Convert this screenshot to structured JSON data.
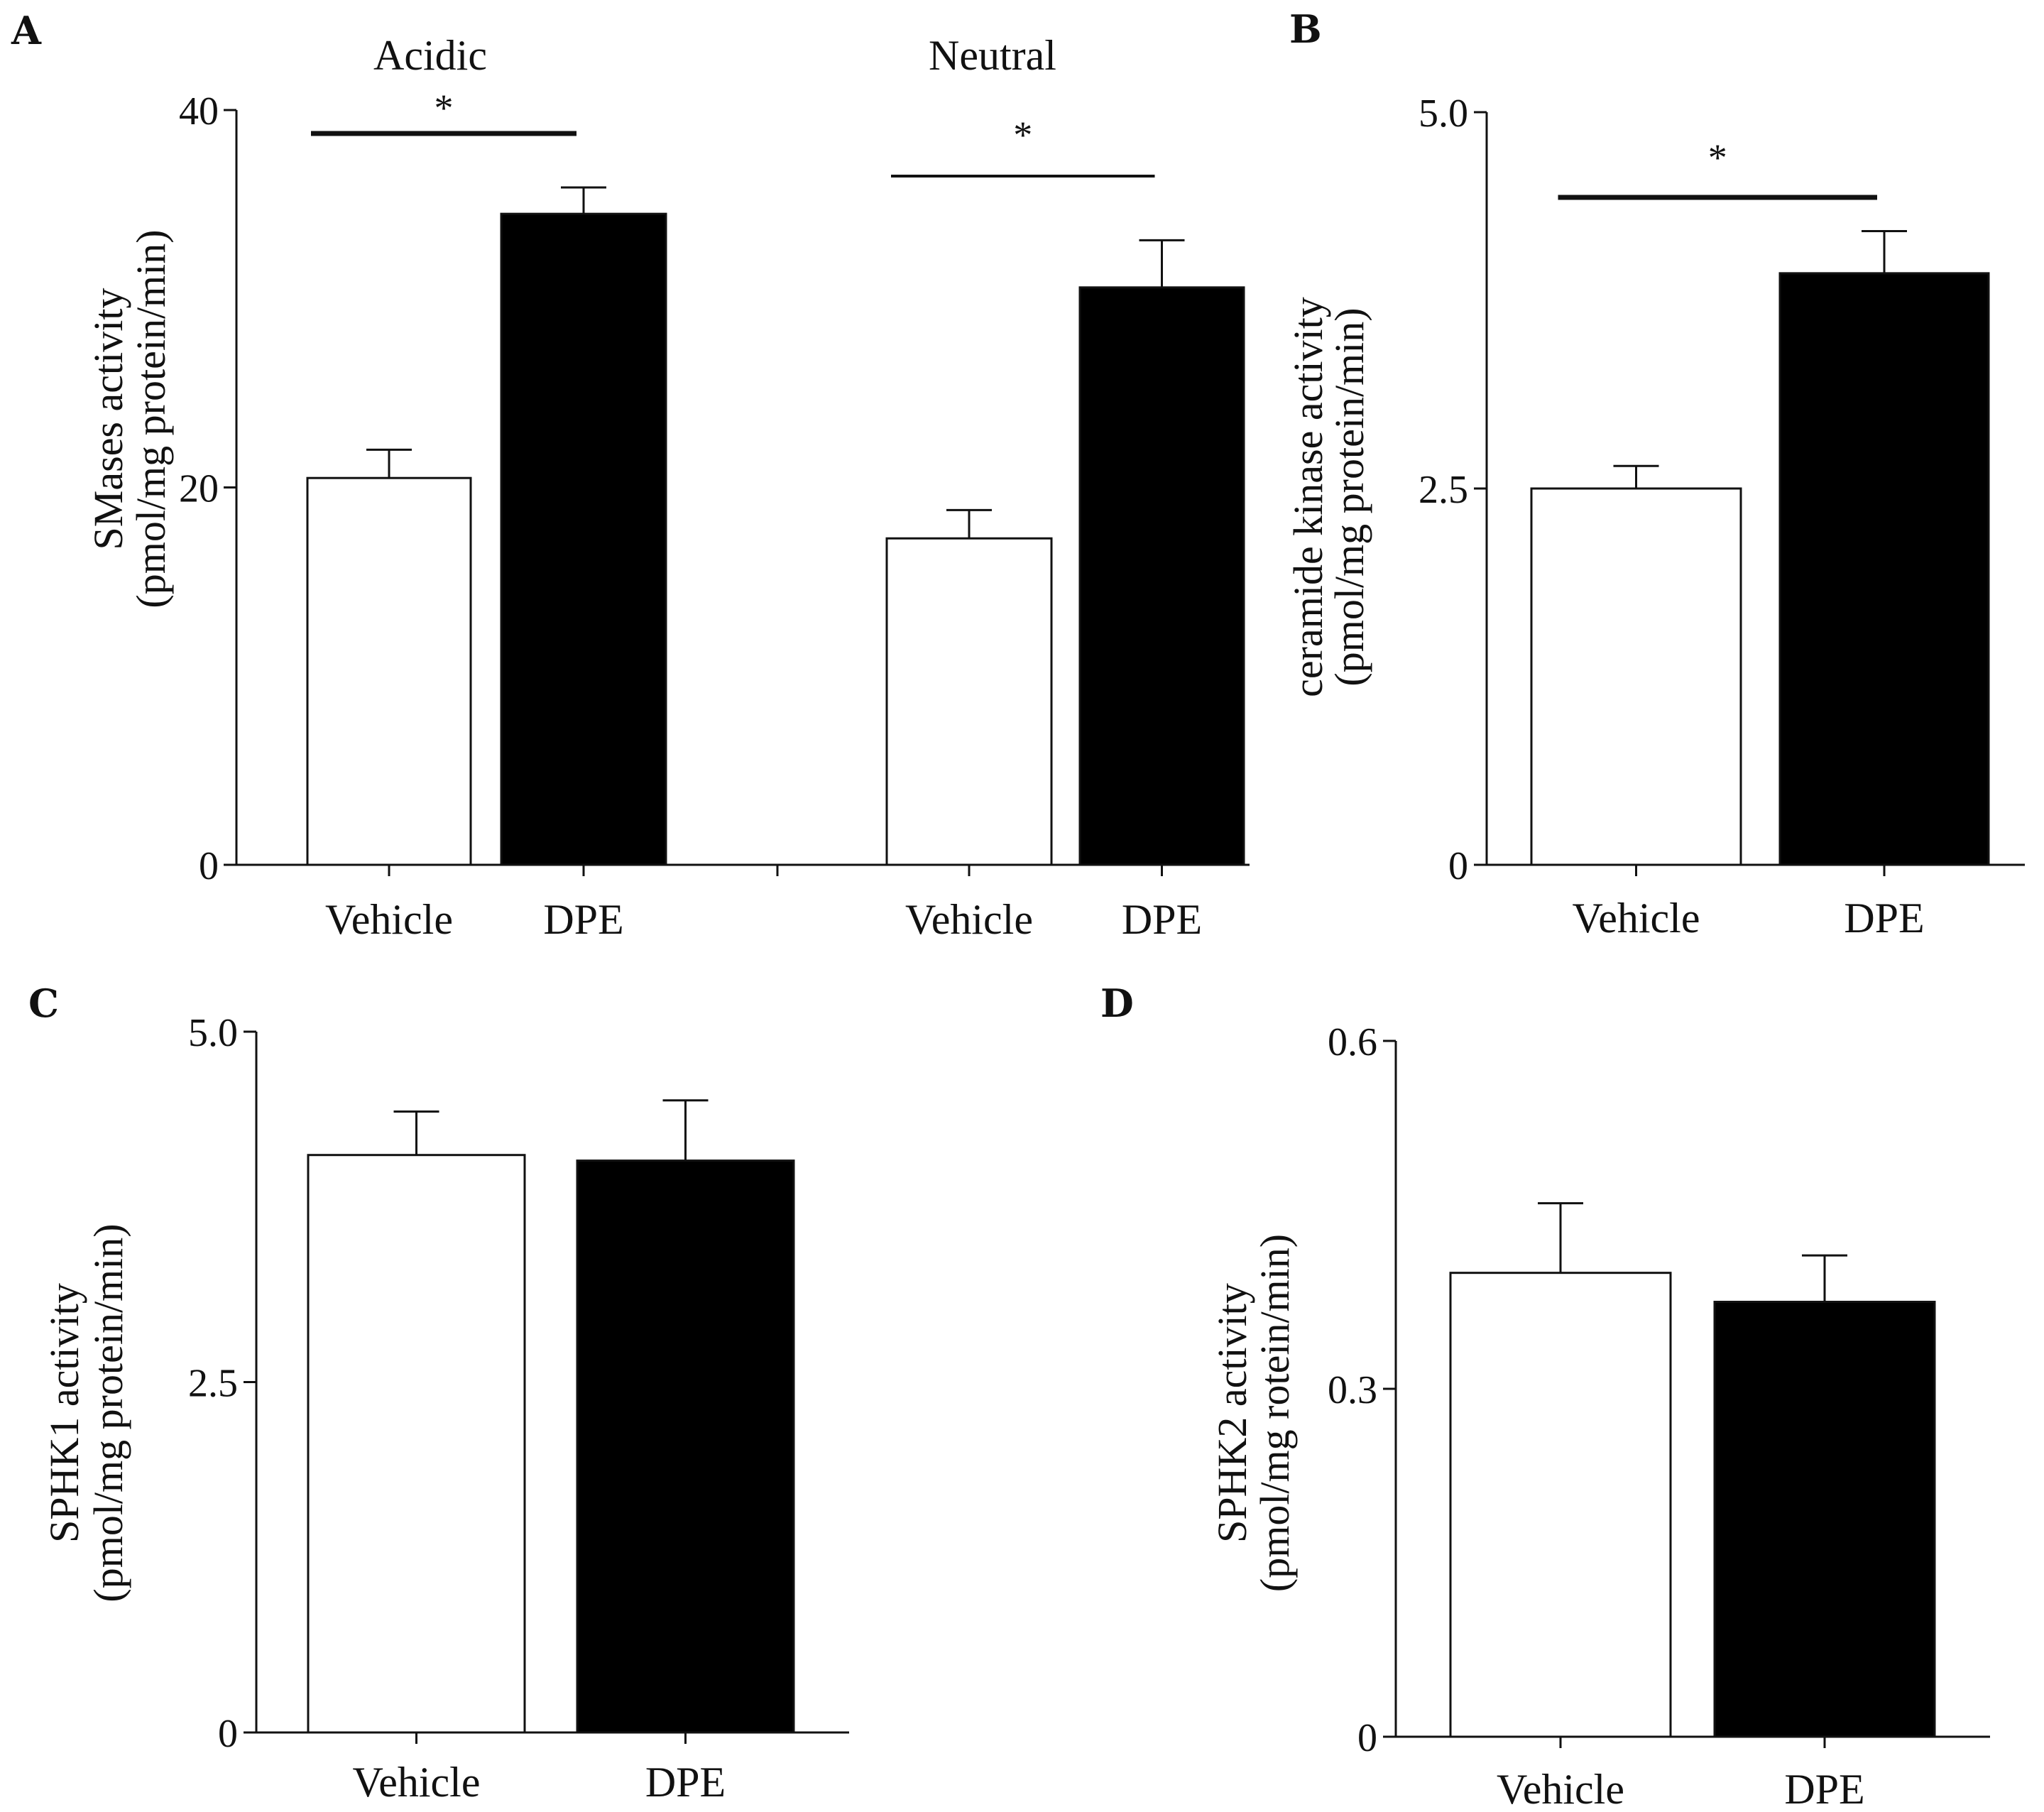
{
  "colors": {
    "vehicle": "#ffffff",
    "dpe": "#000000",
    "axis": "#111111"
  },
  "chart_data": [
    {
      "panel": "A",
      "type": "bar",
      "ylabel": "SMases activity",
      "ylabel2": "(pmol/mg protein/min)",
      "ylim": [
        0,
        40
      ],
      "yticks": [
        "0",
        "20",
        "40"
      ],
      "groups": [
        {
          "label": "Acidic",
          "categories": [
            "Vehicle",
            "DPE"
          ],
          "values": [
            20.5,
            34.5
          ],
          "errors": [
            1.5,
            1.4
          ],
          "significance": "*"
        },
        {
          "label": "Neutral",
          "categories": [
            "Vehicle",
            "DPE"
          ],
          "values": [
            17.3,
            30.6
          ],
          "errors": [
            1.5,
            2.5
          ],
          "significance": "*"
        }
      ]
    },
    {
      "panel": "B",
      "type": "bar",
      "ylabel": "ceramide kinase activity",
      "ylabel2": "(pmol/mg protein/min)",
      "ylim": [
        0,
        5.0
      ],
      "yticks": [
        "0",
        "2.5",
        "5.0"
      ],
      "categories": [
        "Vehicle",
        "DPE"
      ],
      "values": [
        2.5,
        3.93
      ],
      "errors": [
        0.15,
        0.28
      ],
      "significance": "*"
    },
    {
      "panel": "C",
      "type": "bar",
      "ylabel": "SPHK1 activity",
      "ylabel2": "(pmol/mg protein/min)",
      "ylim": [
        0,
        5.0
      ],
      "yticks": [
        "0",
        "2.5",
        "5.0"
      ],
      "categories": [
        "Vehicle",
        "DPE"
      ],
      "values": [
        4.12,
        4.08
      ],
      "errors": [
        0.31,
        0.43
      ]
    },
    {
      "panel": "D",
      "type": "bar",
      "ylabel": "SPHK2 activity",
      "ylabel2": "(pmol/mg rotein/min)",
      "ylim": [
        0,
        0.6
      ],
      "yticks": [
        "0",
        "0.3",
        "0.6"
      ],
      "categories": [
        "Vehicle",
        "DPE"
      ],
      "values": [
        0.4,
        0.375
      ],
      "errors": [
        0.06,
        0.04
      ]
    }
  ]
}
